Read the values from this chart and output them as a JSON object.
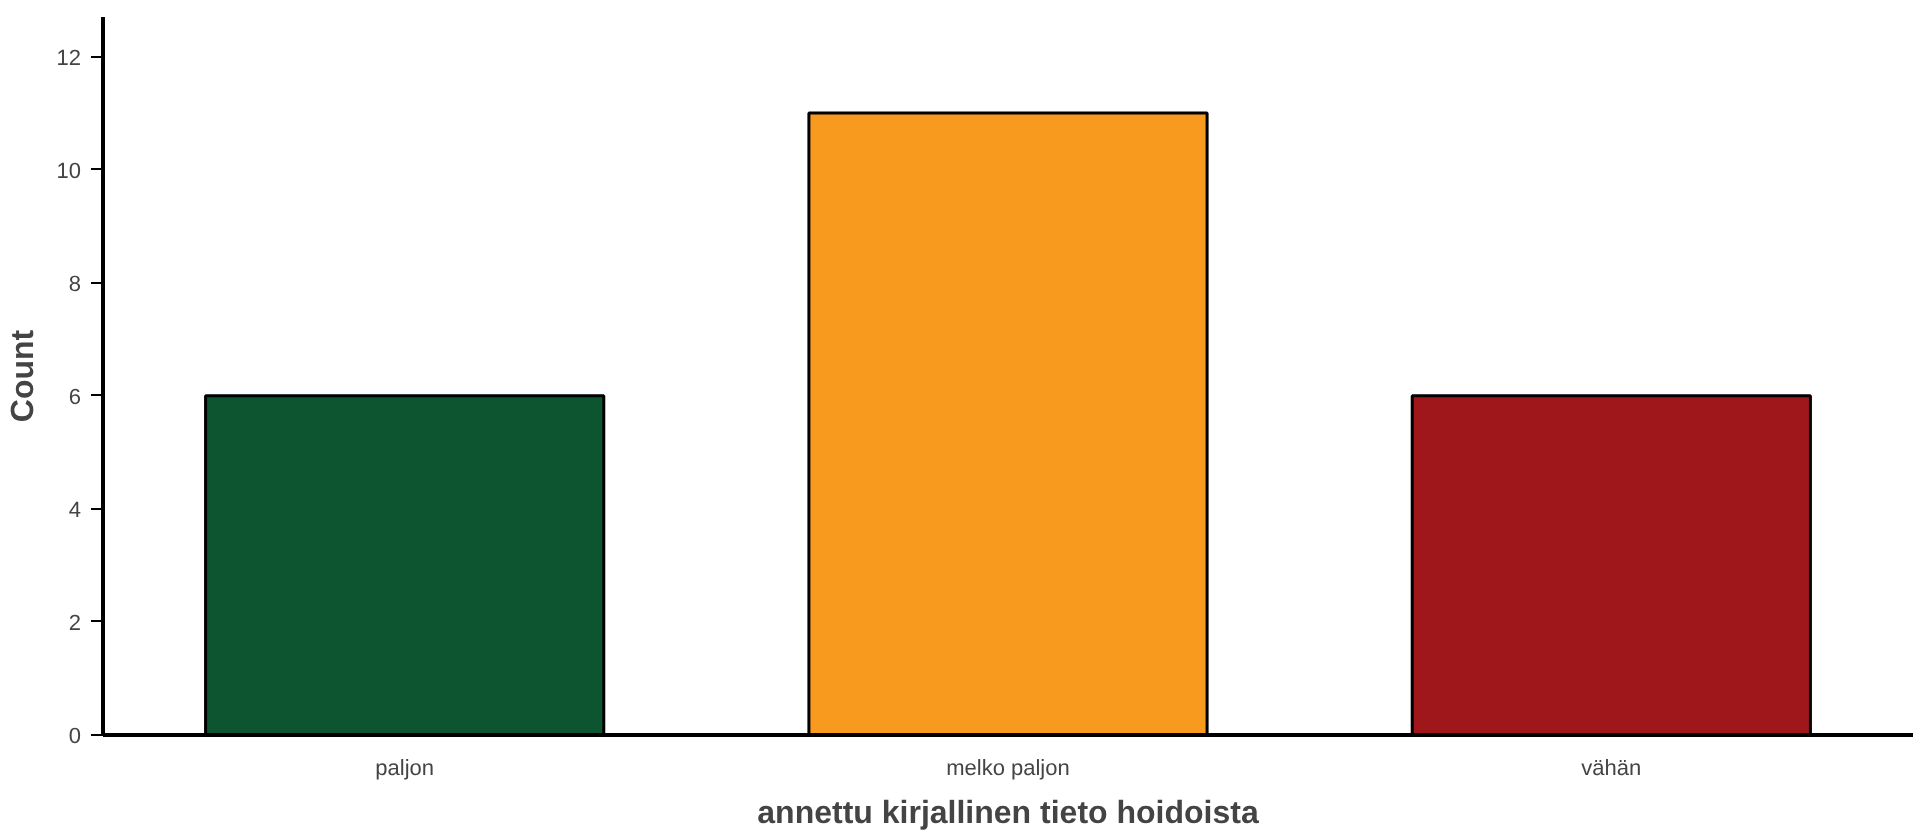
{
  "chart_data": {
    "type": "bar",
    "xlabel": "annettu kirjallinen tieto hoidoista",
    "ylabel": "Count",
    "categories": [
      "paljon",
      "melko paljon",
      "vähän"
    ],
    "values": [
      6,
      11,
      6
    ],
    "colors": [
      "#0d5430",
      "#f79a1e",
      "#a0171b"
    ],
    "ylim": [
      0,
      12.7
    ],
    "yticks": [
      0,
      2,
      4,
      6,
      8,
      10,
      12
    ],
    "grid": false
  }
}
